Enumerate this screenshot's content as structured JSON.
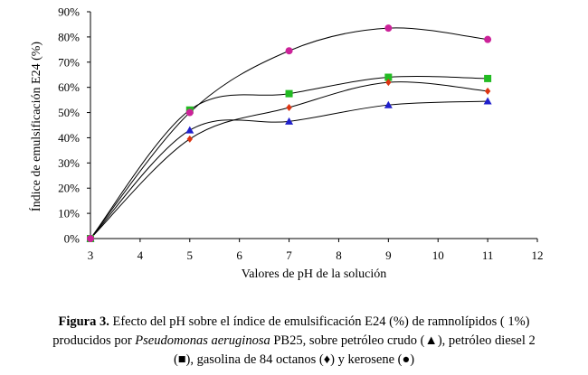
{
  "chart_data": {
    "type": "line",
    "xlabel": "Valores de pH de la solución",
    "ylabel": "Índice de emulsificación E24 (%)",
    "xlim": [
      3,
      12
    ],
    "ylim": [
      0,
      90
    ],
    "x_ticks": [
      3,
      4,
      5,
      6,
      7,
      8,
      9,
      10,
      11,
      12
    ],
    "y_ticks": [
      "0%",
      "10%",
      "20%",
      "30%",
      "40%",
      "50%",
      "60%",
      "70%",
      "80%",
      "90%"
    ],
    "grid": false,
    "x": [
      3,
      5,
      7,
      9,
      11
    ],
    "series": [
      {
        "marker": "triangle",
        "color": "#1f1fcc",
        "values": [
          0,
          43,
          46.5,
          53,
          54.5
        ]
      },
      {
        "marker": "square",
        "color": "#22bb22",
        "values": [
          0,
          51,
          57.5,
          64,
          63.5
        ]
      },
      {
        "marker": "diamond",
        "color": "#dd3311",
        "values": [
          0,
          39.5,
          52,
          62,
          58.5
        ]
      },
      {
        "marker": "circle",
        "color": "#cc2299",
        "values": [
          0,
          50,
          74.5,
          83.5,
          79
        ]
      }
    ]
  },
  "caption": {
    "label": "Figura 3.",
    "text1": " Efecto del pH sobre el índice de emulsificación E24 (%) de ramnolípidos ( 1%)",
    "text2a": "producidos por ",
    "organism": "Pseudomonas aeruginosa",
    "text2b": " PB25, sobre petróleo crudo (▲), petróleo diesel 2",
    "text3": "(■), gasolina de 84 octanos (♦) y kerosene (●)"
  }
}
